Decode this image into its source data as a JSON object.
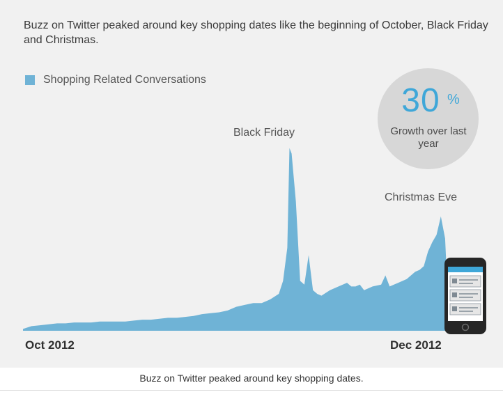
{
  "headline": "Buzz on Twitter peaked around key shopping dates like the beginning of October, Black Friday and Christmas.",
  "caption": "Buzz on Twitter peaked around key shopping dates.",
  "badge": {
    "number": "30",
    "unit": "%",
    "text": "Growth over last year"
  },
  "colors": {
    "area": "#6fb3d6",
    "accent": "#3fa7d8",
    "badge_bg": "#d7d7d7"
  },
  "chart_data": {
    "type": "area",
    "title": "",
    "xlabel": "",
    "ylabel": "",
    "x_tick_labels": [
      "Oct 2012",
      "Dec 2012"
    ],
    "legend": {
      "position": "top-left"
    },
    "grid": false,
    "ylim": [
      0,
      100
    ],
    "series": [
      {
        "name": "Shopping Related Conversations",
        "x": [
          0,
          2,
          4,
          6,
          8,
          10,
          12,
          14,
          16,
          18,
          20,
          22,
          24,
          26,
          28,
          30,
          32,
          34,
          36,
          38,
          40,
          42,
          44,
          46,
          48,
          50,
          52,
          54,
          56,
          58,
          60,
          61,
          62,
          62.5,
          63,
          64,
          65,
          66,
          67,
          68,
          69,
          70,
          72,
          74,
          76,
          77,
          78,
          79,
          80,
          82,
          84,
          85,
          86,
          87,
          88,
          90,
          91,
          92,
          93,
          94,
          95,
          96,
          97,
          98,
          99,
          100
        ],
        "values": [
          1,
          2.5,
          3,
          3.5,
          4,
          4,
          4.5,
          4.5,
          4.5,
          5,
          5,
          5,
          5,
          5.5,
          6,
          6,
          6.5,
          7,
          7,
          7.5,
          8,
          9,
          9.5,
          10,
          11,
          13,
          14,
          15,
          15,
          17,
          20,
          27,
          45,
          99,
          96,
          70,
          27,
          25,
          41,
          22,
          20,
          19,
          22,
          24,
          26,
          24,
          24,
          25,
          22,
          24,
          25,
          30,
          24,
          25,
          26,
          28,
          30,
          32,
          33,
          35,
          43,
          48,
          52,
          62,
          50,
          1
        ]
      }
    ],
    "annotations": [
      {
        "text": "Black Friday",
        "x": 62.5
      },
      {
        "text": "Christmas Eve",
        "x": 96
      }
    ]
  }
}
